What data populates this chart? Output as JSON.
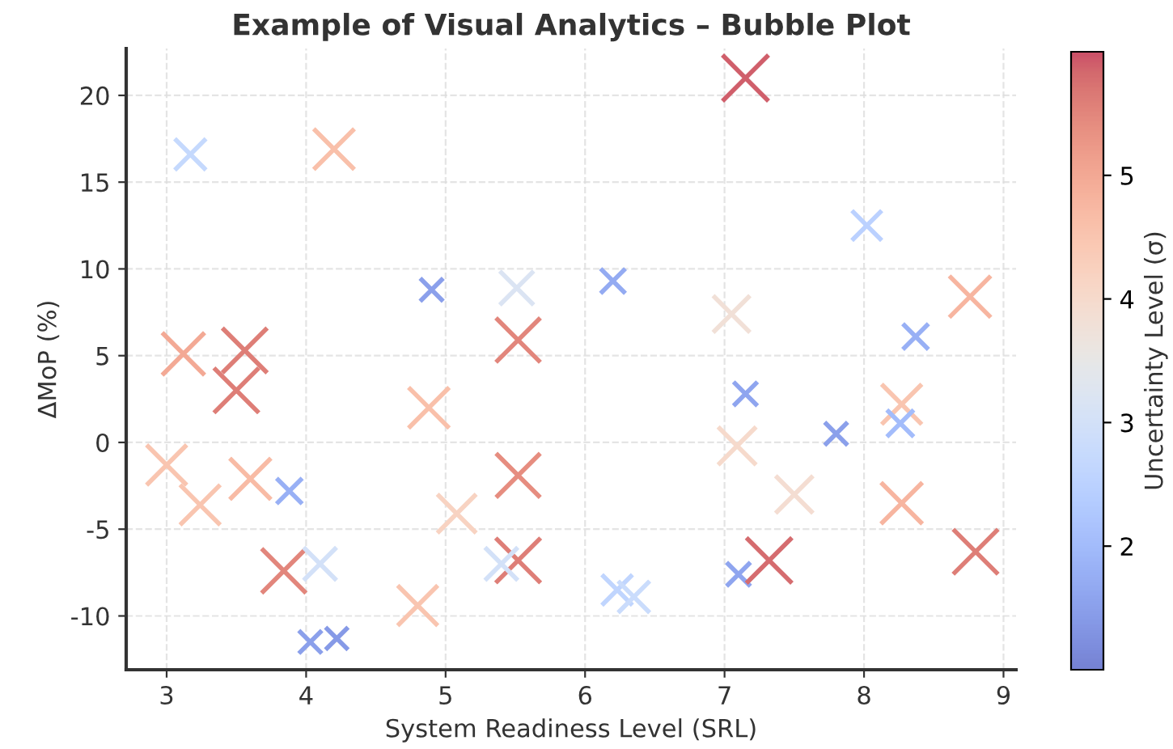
{
  "chart_data": {
    "type": "bubble",
    "title": "Example of Visual Analytics – Bubble Plot",
    "xlabel": "System Readiness Level (SRL)",
    "ylabel": "ΔMoP (%)",
    "clabel": "Uncertainty Level (σ)",
    "x": [
      3.17,
      4.2,
      4.9,
      5.51,
      7.15,
      6.2,
      7.05,
      8.02,
      8.37,
      8.76,
      3.12,
      3.56,
      3.5,
      4.88,
      5.52,
      7.15,
      7.8,
      8.27,
      8.26,
      3.0,
      3.24,
      3.6,
      3.88,
      3.84,
      4.1,
      4.03,
      4.22,
      4.8,
      5.08,
      5.52,
      5.52,
      5.4,
      6.23,
      6.35,
      7.1,
      7.32,
      7.09,
      7.5,
      8.27,
      8.8
    ],
    "values": [
      16.6,
      16.9,
      8.8,
      8.9,
      21.0,
      9.3,
      7.4,
      12.5,
      6.1,
      8.4,
      5.1,
      5.3,
      3.0,
      2.0,
      5.9,
      2.8,
      0.5,
      2.2,
      1.1,
      -1.3,
      -3.6,
      -2.1,
      -2.8,
      -7.4,
      -7.0,
      -11.5,
      -11.3,
      -9.4,
      -4.1,
      -1.9,
      -6.8,
      -7.0,
      -8.5,
      -8.9,
      -7.6,
      -6.8,
      -0.2,
      -3.0,
      -3.5,
      -6.3
    ],
    "cvalues": [
      2.7,
      4.6,
      1.5,
      3.2,
      5.9,
      1.7,
      3.8,
      2.5,
      1.8,
      4.8,
      5.0,
      5.6,
      5.6,
      4.6,
      5.5,
      1.6,
      1.5,
      4.5,
      2.0,
      4.5,
      4.5,
      4.7,
      1.8,
      5.5,
      3.0,
      1.5,
      1.4,
      4.5,
      4.2,
      5.4,
      5.6,
      3.0,
      2.6,
      2.8,
      1.6,
      5.8,
      4.0,
      3.9,
      4.8,
      5.6
    ],
    "sizes": [
      0.46,
      0.78,
      0.25,
      0.54,
      1.0,
      0.29,
      0.64,
      0.42,
      0.31,
      0.81,
      0.85,
      0.95,
      0.95,
      0.78,
      0.93,
      0.27,
      0.25,
      0.76,
      0.34,
      0.76,
      0.76,
      0.8,
      0.31,
      0.93,
      0.51,
      0.25,
      0.24,
      0.76,
      0.71,
      0.92,
      0.95,
      0.51,
      0.44,
      0.47,
      0.27,
      0.98,
      0.68,
      0.66,
      0.81,
      0.95
    ],
    "marker": "cross",
    "xlim": [
      2.71,
      9.09
    ],
    "ylim": [
      -13.1,
      22.7
    ],
    "xticks": [
      3,
      4,
      5,
      6,
      7,
      8,
      9
    ],
    "yticks": [
      -10,
      -5,
      0,
      5,
      10,
      15,
      20
    ],
    "clim": [
      1,
      6
    ],
    "cticks": [
      2,
      3,
      4,
      5
    ],
    "grid": true
  }
}
